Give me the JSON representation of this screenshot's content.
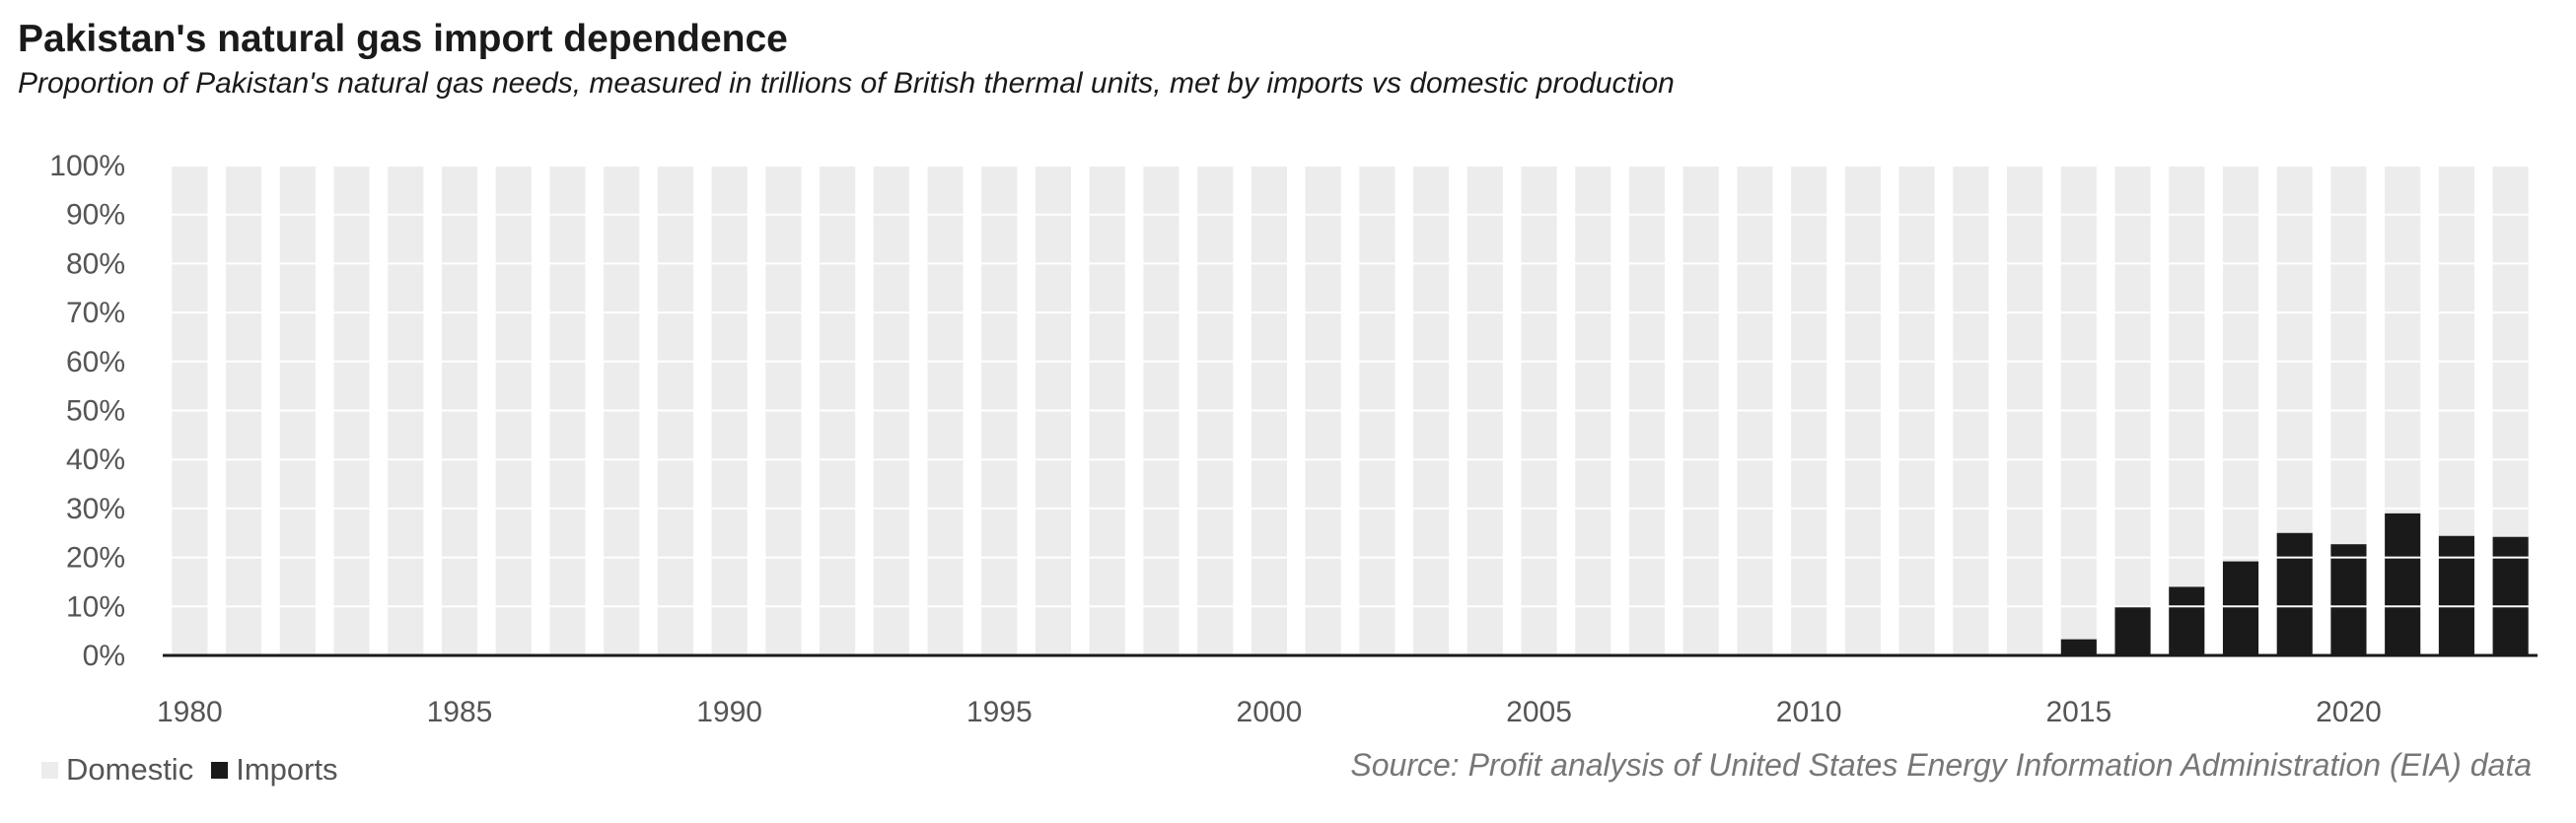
{
  "title": "Pakistan's natural gas import dependence",
  "subtitle": "Proportion of Pakistan's natural gas needs, measured in trillions of British thermal units, met by imports vs domestic production",
  "source": "Source: Profit analysis of United States Energy Information Administration (EIA) data",
  "colors": {
    "domestic": "#ececec",
    "imports": "#1a1a1a",
    "axis": "#1a1a1a",
    "grid": "#ffffff"
  },
  "legend": [
    {
      "label": "Domestic",
      "color": "#ececec"
    },
    {
      "label": "Imports",
      "color": "#1a1a1a"
    }
  ],
  "chart_data": {
    "type": "bar",
    "stacked": true,
    "percent": true,
    "ylim": [
      0,
      100
    ],
    "yticks": [
      "0%",
      "10%",
      "20%",
      "30%",
      "40%",
      "50%",
      "60%",
      "70%",
      "80%",
      "90%",
      "100%"
    ],
    "xtick_labels": [
      "1980",
      "1985",
      "1990",
      "1995",
      "2000",
      "2005",
      "2010",
      "2015",
      "2020"
    ],
    "categories": [
      1980,
      1981,
      1982,
      1983,
      1984,
      1985,
      1986,
      1987,
      1988,
      1989,
      1990,
      1991,
      1992,
      1993,
      1994,
      1995,
      1996,
      1997,
      1998,
      1999,
      2000,
      2001,
      2002,
      2003,
      2004,
      2005,
      2006,
      2007,
      2008,
      2009,
      2010,
      2011,
      2012,
      2013,
      2014,
      2015,
      2016,
      2017,
      2018,
      2019,
      2020,
      2021,
      2022,
      2023
    ],
    "series": [
      {
        "name": "Imports",
        "values": [
          0,
          0,
          0,
          0,
          0,
          0,
          0,
          0,
          0,
          0,
          0,
          0,
          0,
          0,
          0,
          0,
          0,
          0,
          0,
          0,
          0,
          0,
          0,
          0,
          0,
          0,
          0,
          0,
          0,
          0,
          0,
          0,
          0,
          0,
          0,
          3.3,
          10.1,
          14.0,
          19.2,
          25.0,
          22.7,
          29.0,
          24.4,
          24.2
        ]
      },
      {
        "name": "Domestic",
        "values": [
          100,
          100,
          100,
          100,
          100,
          100,
          100,
          100,
          100,
          100,
          100,
          100,
          100,
          100,
          100,
          100,
          100,
          100,
          100,
          100,
          100,
          100,
          100,
          100,
          100,
          100,
          100,
          100,
          100,
          100,
          100,
          100,
          100,
          100,
          100,
          96.7,
          89.9,
          86.0,
          80.8,
          75.0,
          77.3,
          71.0,
          75.6,
          75.8
        ]
      }
    ],
    "legend_position": "bottom-left",
    "grid": true
  }
}
